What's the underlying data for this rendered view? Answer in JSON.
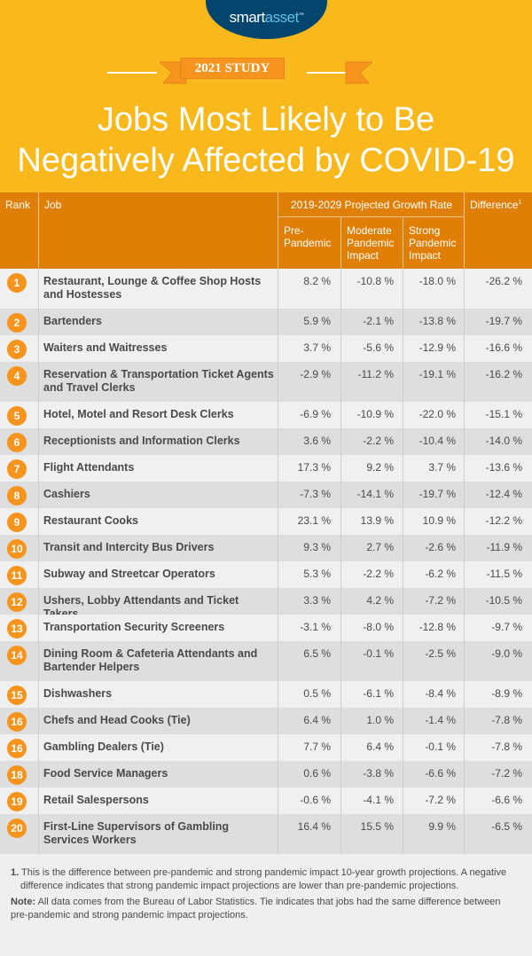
{
  "brand": {
    "logo_part1": "smart",
    "logo_part2": "asset",
    "logo_tm": "™"
  },
  "header": {
    "badge": "2021 STUDY",
    "title_line1": "Jobs Most Likely to Be",
    "title_line2": "Negatively Affected by COVID-19"
  },
  "colors": {
    "hero": "#F9B91C",
    "header": "#E07F06",
    "rank_circle": "#F7941D",
    "logo": "#03456C",
    "row_light": "#f0f0f0",
    "row_dark": "#dedede"
  },
  "chart_data": {
    "type": "table",
    "title": "Jobs Most Likely to Be Negatively Affected by COVID-19",
    "columns": {
      "rank": "Rank",
      "job": "Job",
      "group": "2019-2029 Projected Growth Rate",
      "pre": "Pre-Pandemic",
      "moderate": "Moderate Pandemic Impact",
      "strong": "Strong Pandemic Impact",
      "diff": "Difference",
      "diff_sup": "1"
    },
    "rows": [
      {
        "rank": "1",
        "job": "Restaurant, Lounge & Coffee Shop Hosts and Hostesses",
        "pre": "8.2 %",
        "moderate": "-10.8 %",
        "strong": "-18.0 %",
        "diff": "-26.2 %"
      },
      {
        "rank": "2",
        "job": "Bartenders",
        "pre": "5.9 %",
        "moderate": "-2.1 %",
        "strong": "-13.8 %",
        "diff": "-19.7 %"
      },
      {
        "rank": "3",
        "job": "Waiters and Waitresses",
        "pre": "3.7 %",
        "moderate": "-5.6 %",
        "strong": "-12.9 %",
        "diff": "-16.6 %"
      },
      {
        "rank": "4",
        "job": "Reservation & Transportation Ticket Agents and Travel Clerks",
        "pre": "-2.9 %",
        "moderate": "-11.2 %",
        "strong": "-19.1 %",
        "diff": "-16.2 %"
      },
      {
        "rank": "5",
        "job": "Hotel, Motel and Resort Desk Clerks",
        "pre": "-6.9 %",
        "moderate": "-10.9 %",
        "strong": "-22.0 %",
        "diff": "-15.1 %"
      },
      {
        "rank": "6",
        "job": "Receptionists and Information Clerks",
        "pre": "3.6 %",
        "moderate": "-2.2 %",
        "strong": "-10.4 %",
        "diff": "-14.0 %"
      },
      {
        "rank": "7",
        "job": "Flight Attendants",
        "pre": "17.3 %",
        "moderate": "9.2 %",
        "strong": "3.7 %",
        "diff": "-13.6 %"
      },
      {
        "rank": "8",
        "job": "Cashiers",
        "pre": "-7.3 %",
        "moderate": "-14.1 %",
        "strong": "-19.7 %",
        "diff": "-12.4 %"
      },
      {
        "rank": "9",
        "job": "Restaurant Cooks",
        "pre": "23.1 %",
        "moderate": "13.9 %",
        "strong": "10.9 %",
        "diff": "-12.2 %"
      },
      {
        "rank": "10",
        "job": "Transit and Intercity Bus Drivers",
        "pre": "9.3 %",
        "moderate": "2.7 %",
        "strong": "-2.6 %",
        "diff": "-11.9 %"
      },
      {
        "rank": "11",
        "job": "Subway and Streetcar Operators",
        "pre": "5.3 %",
        "moderate": "-2.2 %",
        "strong": "-6.2 %",
        "diff": "-11.5 %"
      },
      {
        "rank": "12",
        "job": "Ushers, Lobby Attendants and Ticket Takers",
        "pre": "3.3 %",
        "moderate": "4.2 %",
        "strong": "-7.2 %",
        "diff": "-10.5 %"
      },
      {
        "rank": "13",
        "job": "Transportation Security Screeners",
        "pre": "-3.1 %",
        "moderate": "-8.0 %",
        "strong": "-12.8 %",
        "diff": "-9.7 %"
      },
      {
        "rank": "14",
        "job": "Dining Room & Cafeteria Attendants and Bartender Helpers",
        "pre": "6.5 %",
        "moderate": "-0.1 %",
        "strong": "-2.5 %",
        "diff": "-9.0 %"
      },
      {
        "rank": "15",
        "job": "Dishwashers",
        "pre": "0.5 %",
        "moderate": "-6.1 %",
        "strong": "-8.4 %",
        "diff": "-8.9 %"
      },
      {
        "rank": "16",
        "job": "Chefs and Head Cooks (Tie)",
        "pre": "6.4 %",
        "moderate": "1.0 %",
        "strong": "-1.4 %",
        "diff": "-7.8 %"
      },
      {
        "rank": "16",
        "job": "Gambling Dealers (Tie)",
        "pre": "7.7 %",
        "moderate": "6.4 %",
        "strong": "-0.1 %",
        "diff": "-7.8 %"
      },
      {
        "rank": "18",
        "job": "Food Service Managers",
        "pre": "0.6 %",
        "moderate": "-3.8 %",
        "strong": "-6.6 %",
        "diff": "-7.2 %"
      },
      {
        "rank": "19",
        "job": "Retail Salespersons",
        "pre": "-0.6 %",
        "moderate": "-4.1 %",
        "strong": "-7.2 %",
        "diff": "-6.6 %"
      },
      {
        "rank": "20",
        "job": "First-Line Supervisors of Gambling Services Workers",
        "pre": "16.4 %",
        "moderate": "15.5 %",
        "strong": "9.9 %",
        "diff": "-6.5 %"
      }
    ]
  },
  "footer": {
    "footnote_num": "1.",
    "footnote": "This is the difference between pre-pandemic and strong pandemic impact 10-year growth projections. A negative difference indicates that strong pandemic impact projections are lower than pre-pandemic projections.",
    "note_label": "Note:",
    "note": "All data comes from the Bureau of Labor Statistics. Tie indicates that jobs had the same difference between pre-pandemic and strong pandemic impact projections."
  }
}
